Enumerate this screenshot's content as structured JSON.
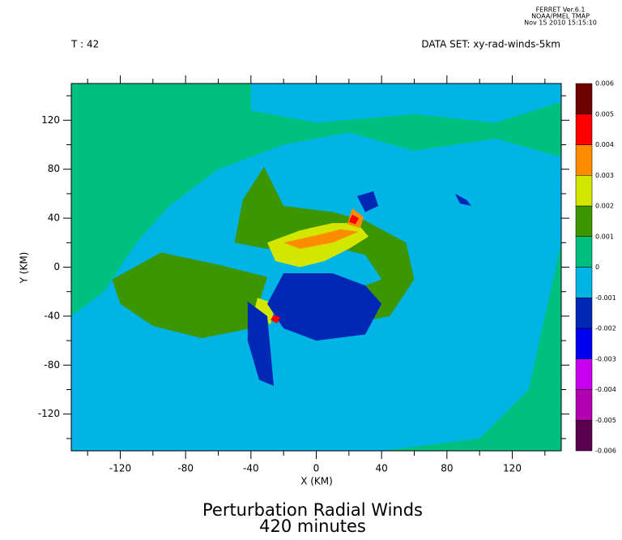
{
  "header": {
    "lines": [
      "FERRET Ver.6.1",
      "NOAA/PMEL TMAP",
      "Nov 15 2010 15:15:10"
    ]
  },
  "chart_data": {
    "type": "contour",
    "title": "Perturbation Radial Winds",
    "subtitle": "420 minutes",
    "time_label": "T : 42",
    "dataset_label": "DATA SET: xy-rad-winds-5km",
    "x_label": "X (KM)",
    "y_label": "Y (KM)",
    "xlim": [
      -150,
      150
    ],
    "ylim": [
      -150,
      150
    ],
    "xticks": [
      -120,
      -80,
      -40,
      0,
      40,
      80,
      120
    ],
    "yticks": [
      -120,
      -80,
      -40,
      0,
      40,
      80,
      120
    ],
    "colorbar": {
      "levels": [
        -0.006,
        -0.005,
        -0.004,
        -0.003,
        -0.002,
        -0.001,
        0,
        0.001,
        0.002,
        0.003,
        0.004,
        0.005,
        0.006
      ],
      "colors": [
        "#5a0050",
        "#b000b0",
        "#c800f0",
        "#0000f0",
        "#0028b4",
        "#00b4e6",
        "#00c080",
        "#3c9600",
        "#d2e600",
        "#ff8c00",
        "#ff0000",
        "#6e0000"
      ]
    }
  }
}
